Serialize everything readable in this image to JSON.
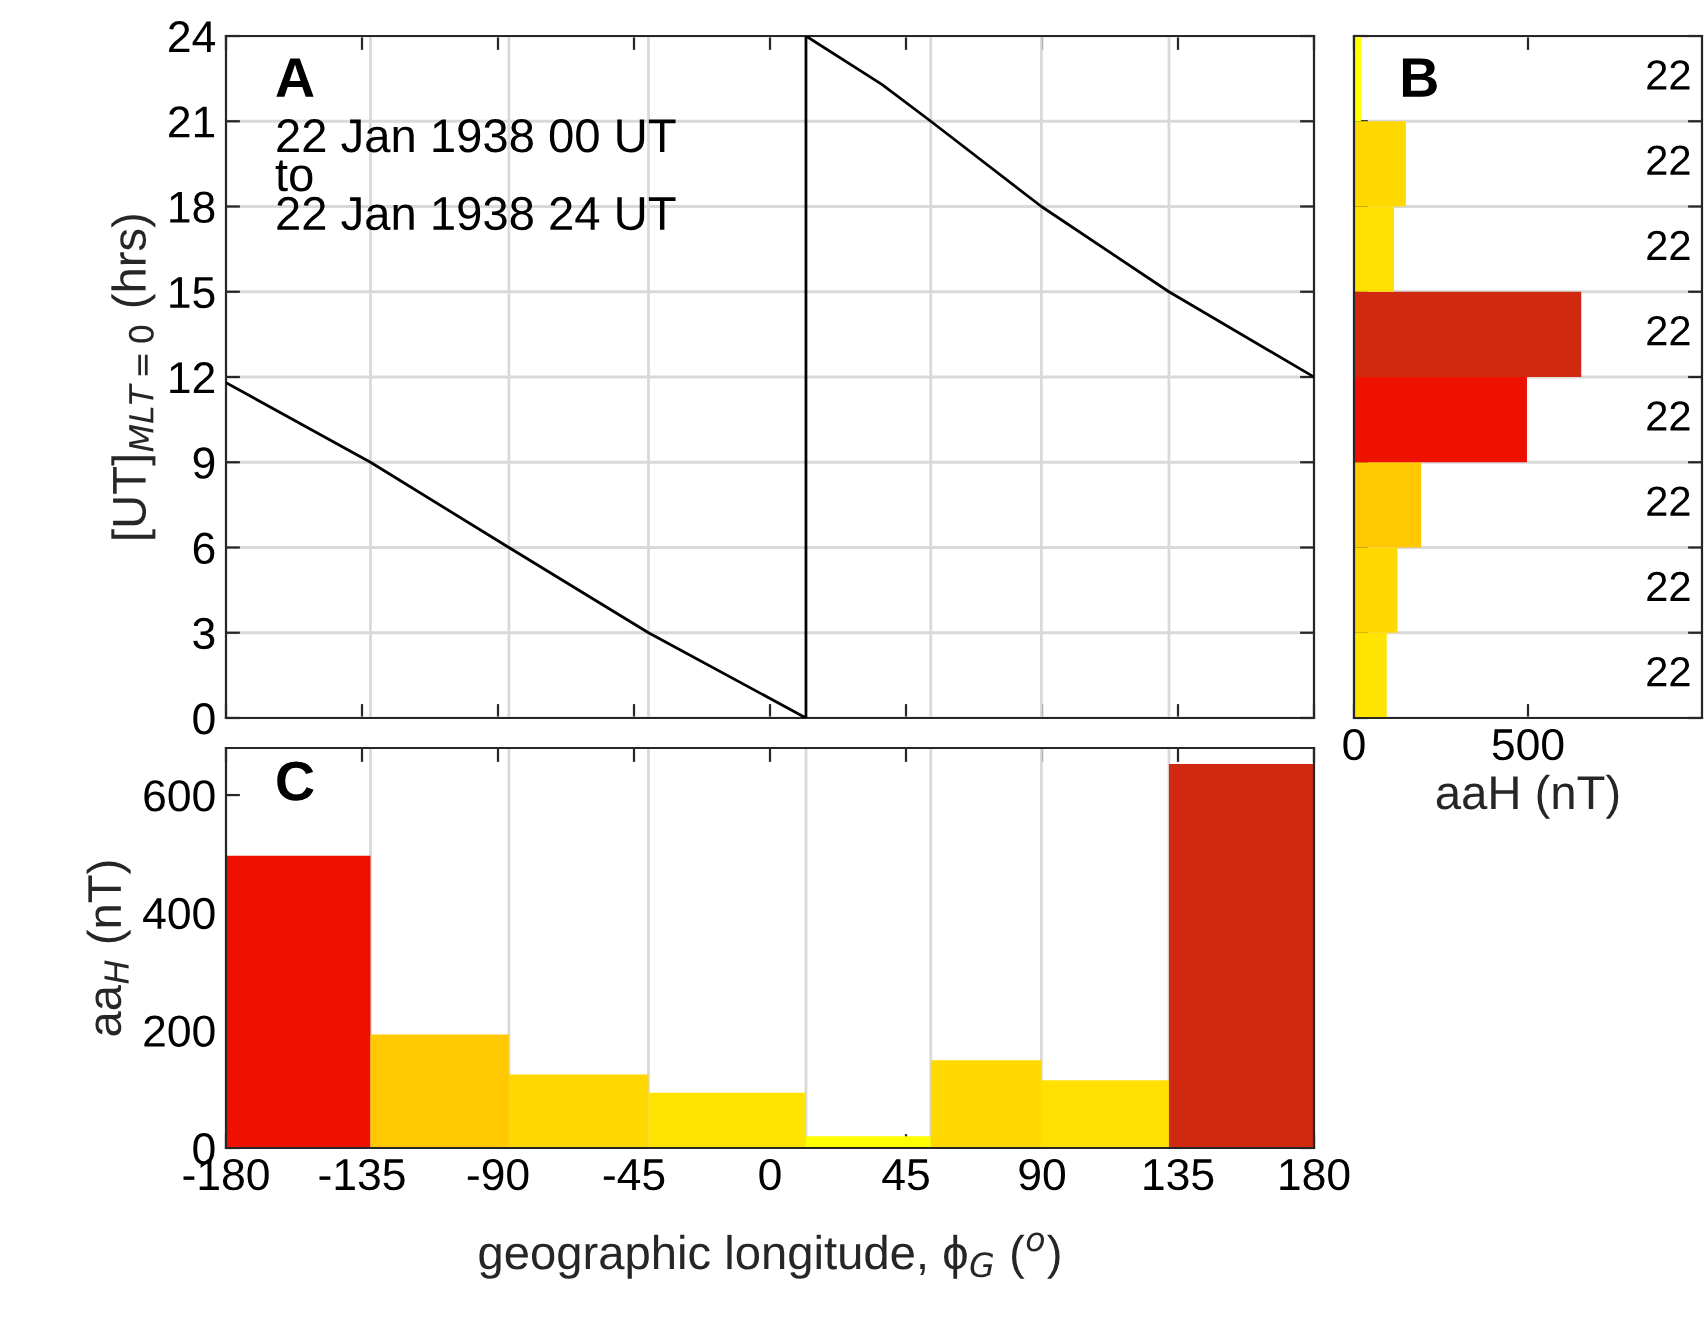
{
  "chart_data": [
    {
      "type": "line",
      "title": "A",
      "ylabel": "[UT]$_{MLT=0}$ (hrs)",
      "annotations": [
        "22 Jan 1938 00 UT\nto\n22 Jan 1938 24 UT"
      ],
      "ref_lines": [
        {
          "axis": "x",
          "value": -132.2,
          "color": "#d9d9d9"
        },
        {
          "axis": "x",
          "value": -86.4,
          "color": "#d9d9d9"
        },
        {
          "axis": "x",
          "value": -40.2,
          "color": "#d9d9d9"
        },
        {
          "axis": "x",
          "value": 53.2,
          "color": "#d9d9d9"
        },
        {
          "axis": "x",
          "value": 89.8,
          "color": "#d9d9d9"
        },
        {
          "axis": "x",
          "value": 132,
          "color": "#d9d9d9"
        }
      ],
      "series": [
        {
          "type": "line",
          "color": "#000000",
          "x": [
            -180,
            -132.2,
            -86.4,
            -40.2,
            11.9,
            11.9,
            37,
            53.2,
            89.8,
            132,
            180
          ],
          "values": [
            11.8,
            9,
            6,
            3,
            0,
            24,
            22.3,
            21,
            18,
            15,
            12
          ]
        }
      ],
      "xlim": [
        -180,
        180
      ],
      "xticks": [
        -180,
        -135,
        -90,
        -45,
        0,
        45,
        90,
        135,
        180
      ],
      "ylim": [
        0,
        24
      ],
      "yticks": [
        0,
        3,
        6,
        9,
        12,
        15,
        18,
        21,
        24
      ],
      "grid": "y",
      "tick_labels": "y",
      "line_style": "solid"
    },
    {
      "type": "histogram",
      "orientation": "horizontal",
      "title": "B",
      "xlabel": "aaH (nT)",
      "bins": [
        0,
        3,
        6,
        9,
        12,
        15,
        18,
        21,
        24
      ],
      "values": [
        94,
        125,
        193,
        497,
        653,
        115,
        149,
        20
      ],
      "colors": [
        "#ffe400",
        "#ffd800",
        "#ffc800",
        "#ee1100",
        "#d0290f",
        "#ffe000",
        "#ffd800",
        "#ffff00"
      ],
      "annotations": [
        "22",
        "22",
        "22",
        "22",
        "22",
        "22",
        "22",
        "22"
      ],
      "xlim": [
        0,
        1000
      ],
      "xticks": [
        0,
        500
      ],
      "ylim": [
        0,
        24
      ],
      "yticks": [
        0,
        3,
        6,
        9,
        12,
        15,
        18,
        21,
        24
      ],
      "grid": "y",
      "tick_labels": "x"
    },
    {
      "type": "histogram",
      "title": "C",
      "xlabel": "geographic longitude, ϕ$_{G}$ ($^{o}$)",
      "ylabel": "aa$_{H}$ (nT)",
      "bins": [
        -180,
        -132.2,
        -86.4,
        -40.2,
        11.9,
        53.2,
        89.8,
        132,
        180
      ],
      "values": [
        497,
        193,
        125,
        94,
        20,
        149,
        115,
        653
      ],
      "colors": [
        "#ee1100",
        "#ffc800",
        "#ffd800",
        "#ffe400",
        "#ffff00",
        "#ffd800",
        "#ffe000",
        "#d0290f"
      ],
      "ref_lines": [
        {
          "axis": "x",
          "value": -132.2,
          "color": "#d9d9d9"
        },
        {
          "axis": "x",
          "value": -86.4,
          "color": "#d9d9d9"
        },
        {
          "axis": "x",
          "value": -40.2,
          "color": "#d9d9d9"
        },
        {
          "axis": "x",
          "value": 11.9,
          "color": "#d9d9d9"
        },
        {
          "axis": "x",
          "value": 53.2,
          "color": "#d9d9d9"
        },
        {
          "axis": "x",
          "value": 89.8,
          "color": "#d9d9d9"
        },
        {
          "axis": "x",
          "value": 132,
          "color": "#d9d9d9"
        }
      ],
      "xlim": [
        -180,
        180
      ],
      "xticks": [
        -180,
        -135,
        -90,
        -45,
        0,
        45,
        90,
        135,
        180
      ],
      "ylim": [
        0,
        680
      ],
      "yticks": [
        0,
        200,
        400,
        600
      ],
      "grid": false
    }
  ]
}
